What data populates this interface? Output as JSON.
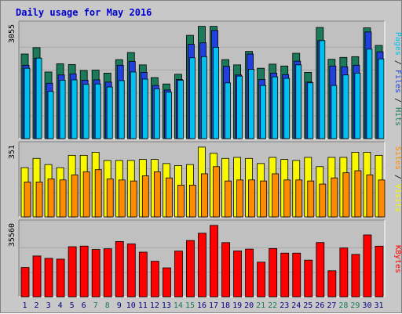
{
  "chart_data": {
    "type": "bar",
    "title": "Daily usage for May 2016",
    "categories": [
      "1",
      "2",
      "3",
      "4",
      "5",
      "6",
      "7",
      "8",
      "9",
      "10",
      "11",
      "12",
      "13",
      "14",
      "15",
      "16",
      "17",
      "18",
      "19",
      "20",
      "21",
      "22",
      "23",
      "24",
      "25",
      "26",
      "27",
      "28",
      "29",
      "30",
      "31"
    ],
    "weekend_days": [
      "7",
      "8",
      "14",
      "15",
      "21",
      "22",
      "28",
      "29"
    ],
    "panels": [
      {
        "name": "pages-files-hits",
        "ymax_label": "3055",
        "ymax": 3055,
        "legend": [
          "Pages",
          "Files",
          "Hits"
        ],
        "series": [
          {
            "name": "Hits",
            "color": "#1a7a5a",
            "values": [
              2260,
              2430,
              1780,
              2000,
              1980,
              1820,
              1830,
              1750,
              2110,
              2300,
              1970,
              1630,
              1460,
              1720,
              2760,
              3000,
              3000,
              2110,
              1970,
              2330,
              1880,
              1990,
              1940,
              2280,
              1770,
              2970,
              2120,
              2170,
              2190,
              2960,
              2490
            ]
          },
          {
            "name": "Files",
            "color": "#2040e0",
            "values": [
              1960,
              2150,
              1480,
              1700,
              1730,
              1560,
              1570,
              1510,
              1960,
              2060,
              1770,
              1420,
              1300,
              1580,
              2520,
              2560,
              2890,
              1930,
              1700,
              2260,
              1580,
              1750,
              1710,
              2070,
              1510,
              2620,
              1940,
              1920,
              1960,
              2850,
              2320
            ]
          },
          {
            "name": "Pages",
            "color": "#00c0f0",
            "values": [
              1880,
              2150,
              1260,
              1560,
              1570,
              1450,
              1460,
              1380,
              1550,
              1780,
              1590,
              1330,
              1240,
              1560,
              2160,
              2190,
              2440,
              1490,
              1670,
              1850,
              1420,
              1650,
              1610,
              1970,
              1490,
              2620,
              1420,
              1700,
              1750,
              2390,
              2130
            ]
          }
        ]
      },
      {
        "name": "sites-visits",
        "ymax_label": "351",
        "ymax": 351,
        "legend": [
          "Sites",
          "Visits"
        ],
        "series": [
          {
            "name": "Visits",
            "color": "#f8f800",
            "values": [
              240,
              285,
              255,
              240,
              300,
              300,
              315,
              275,
              275,
              275,
              280,
              280,
              260,
              250,
              255,
              340,
              310,
              285,
              290,
              285,
              260,
              290,
              280,
              275,
              290,
              245,
              290,
              290,
              315,
              315,
              300
            ]
          },
          {
            "name": "Sites",
            "color": "#ff8c00",
            "values": [
              170,
              170,
              185,
              180,
              205,
              220,
              230,
              185,
              180,
              175,
              200,
              220,
              190,
              155,
              155,
              210,
              245,
              175,
              180,
              180,
              175,
              210,
              180,
              180,
              175,
              160,
              190,
              215,
              225,
              205,
              180
            ]
          }
        ]
      },
      {
        "name": "kbytes",
        "ymax_label": "35560",
        "ymax": 35560,
        "legend": [
          "KBytes"
        ],
        "series": [
          {
            "name": "KBytes",
            "color": "#ff0000",
            "values": [
              14140,
              19710,
              18560,
              18190,
              24200,
              24500,
              22860,
              23200,
              26710,
              25540,
              21570,
              17160,
              13970,
              22080,
              27180,
              30700,
              34490,
              26170,
              22140,
              23040,
              16740,
              23320,
              21100,
              21100,
              17710,
              26210,
              12570,
              23570,
              20480,
              29880,
              24470
            ]
          }
        ]
      }
    ]
  }
}
